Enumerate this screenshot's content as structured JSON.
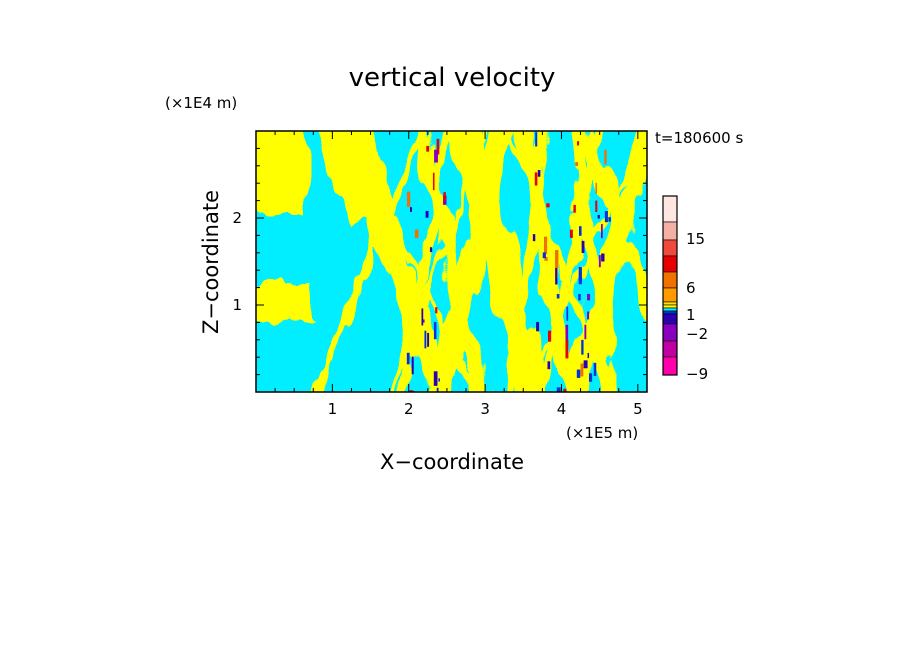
{
  "chart_data": {
    "type": "heatmap",
    "title": "vertical velocity",
    "xlabel": "X−coordinate",
    "ylabel": "Z−coordinate",
    "x_unit": "(×1E5 m)",
    "y_unit": "(×1E4 m)",
    "time_label": "t=180600 s",
    "xlim": [
      0,
      5.12
    ],
    "ylim": [
      0,
      3.0
    ],
    "x_ticks": [
      "1",
      "2",
      "3",
      "4",
      "5"
    ],
    "x_tick_values": [
      1,
      2,
      3,
      4,
      5
    ],
    "y_ticks": [
      "1",
      "2"
    ],
    "y_tick_values": [
      1,
      2
    ],
    "colors": {
      "positive_small": "#ffff00",
      "negative_small": "#00eeff"
    },
    "colorbar": {
      "labels": [
        "15",
        "6",
        "1",
        "−2",
        "−9"
      ],
      "label_levels": [
        15,
        6,
        1,
        -2,
        -9
      ],
      "levels_top_to_bottom": [
        ">15",
        "15",
        "10",
        "6",
        "3",
        "1",
        "0.5",
        "0",
        "-0.5",
        "-2",
        "-4",
        "-6",
        "-9",
        "<-9"
      ],
      "colors_top_to_bottom": [
        "#ffe6e0",
        "#f4b0a4",
        "#f04a40",
        "#e60000",
        "#f07000",
        "#ff9a00",
        "#ffe400",
        "#ffff00",
        "#00eeff",
        "#0030e0",
        "#2a00b0",
        "#8a00c0",
        "#c000a0",
        "#ff00aa"
      ]
    }
  }
}
